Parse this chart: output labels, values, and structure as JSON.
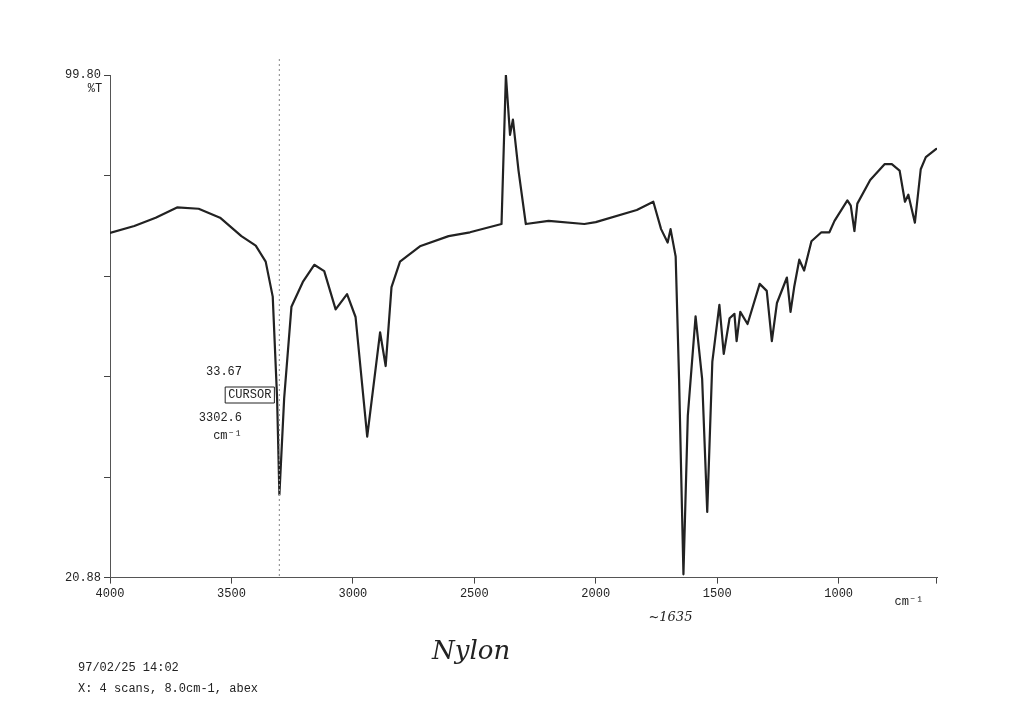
{
  "chart_data": {
    "type": "line",
    "xlabel": "cm⁻¹",
    "ylabel": "%T",
    "color": "#222222",
    "marker": "none",
    "line_style": "solid",
    "grid": false,
    "legend": false,
    "xlim": [
      4000,
      595
    ],
    "xticks": [
      4000,
      3500,
      3000,
      2500,
      2000,
      1500,
      1000,
      {
        "value": 598,
        "label": null
      }
    ],
    "ylim": [
      20.88,
      99.8
    ],
    "yticks": [
      20.88,
      {
        "value": 36.66,
        "label": null
      },
      {
        "value": 52.45,
        "label": null
      },
      {
        "value": 68.23,
        "label": null
      },
      {
        "value": 84.02,
        "label": null
      },
      {
        "value": 99.8,
        "label": "99.80"
      }
    ],
    "x": [
      4000,
      3900,
      3812,
      3724,
      3635,
      3547,
      3459,
      3400,
      3359,
      3330,
      3312,
      3302.6,
      3283,
      3253,
      3206,
      3159,
      3118,
      3071,
      3024,
      2989,
      2941,
      2906,
      2888,
      2865,
      2841,
      2806,
      2724,
      2606,
      2518,
      2388,
      2370,
      2353,
      2341,
      2318,
      2288,
      2194,
      2047,
      2000,
      1831,
      1763,
      1731,
      1704,
      1692,
      1671,
      1657,
      1639,
      1621,
      1589,
      1562,
      1541,
      1520,
      1491,
      1473,
      1449,
      1429,
      1420,
      1405,
      1375,
      1325,
      1296,
      1275,
      1254,
      1213,
      1198,
      1183,
      1162,
      1142,
      1112,
      1071,
      1038,
      1017,
      964,
      950,
      935,
      923,
      870,
      811,
      781,
      749,
      727,
      713,
      686,
      662,
      641,
      598
    ],
    "values": [
      75.0,
      76.1,
      77.4,
      79.0,
      78.8,
      77.4,
      74.5,
      73.0,
      70.5,
      65.0,
      49.0,
      33.9,
      49.0,
      63.4,
      67.3,
      70.0,
      69.0,
      63.0,
      65.4,
      61.8,
      43.0,
      53.8,
      59.4,
      54.1,
      66.5,
      70.5,
      72.9,
      74.5,
      75.1,
      76.4,
      99.8,
      90.4,
      92.8,
      84.8,
      76.4,
      76.9,
      76.4,
      76.7,
      78.6,
      79.9,
      75.6,
      73.5,
      75.6,
      71.3,
      52.1,
      21.4,
      46.3,
      61.9,
      52.1,
      31.2,
      54.8,
      63.7,
      56.0,
      61.6,
      62.3,
      58.0,
      62.6,
      60.7,
      67.0,
      65.9,
      58.0,
      64.0,
      68.0,
      62.6,
      66.5,
      70.8,
      69.1,
      73.7,
      75.1,
      75.1,
      76.9,
      80.1,
      79.3,
      75.3,
      79.6,
      83.3,
      85.8,
      85.8,
      84.8,
      79.9,
      81.0,
      76.6,
      85.0,
      86.9,
      88.2
    ],
    "ref_lines": [
      {
        "axis": "x",
        "value": 3302.6,
        "label": "CURSOR",
        "line_style": "dotted",
        "color": "#9a9a9a"
      }
    ],
    "annotations": [
      "33.67",
      "3302.6",
      "cm⁻¹",
      "97/02/25 14:02",
      "X: 4 scans, 8.0cm-1, abex",
      "Nylon",
      {
        "text": "~1635",
        "x": 1635,
        "y": 20.88
      }
    ]
  }
}
